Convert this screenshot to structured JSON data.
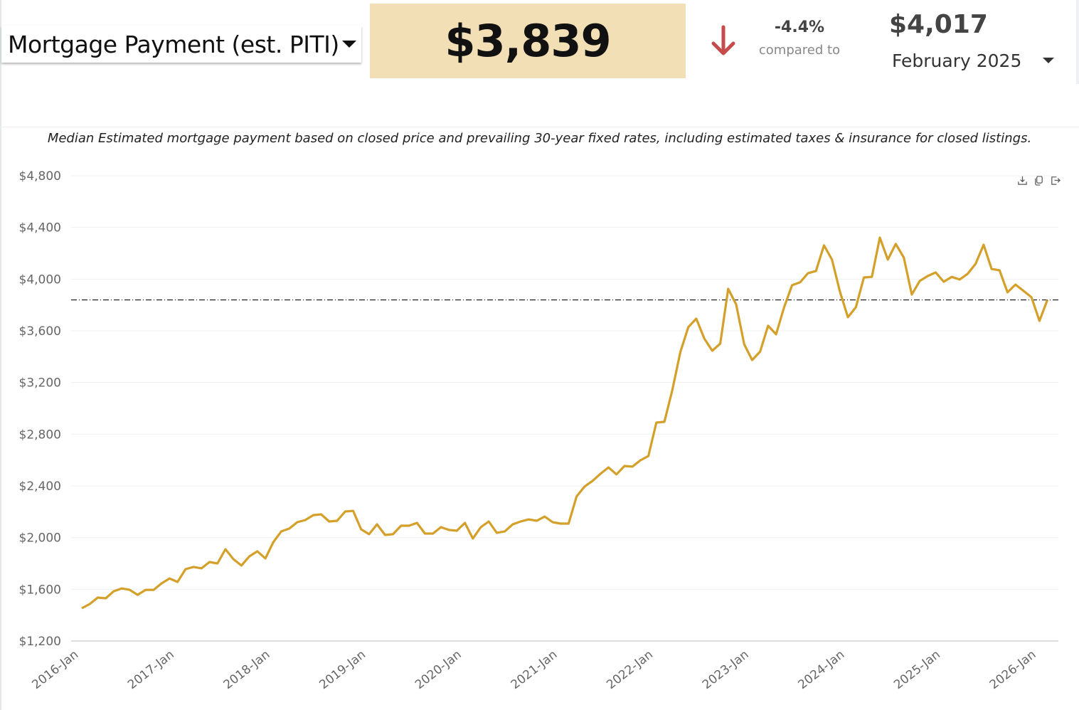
{
  "header": {
    "metric_selector": "Mortgage Payment (est. PITI)",
    "current_value": "$3,839",
    "change_percent": "-4.4%",
    "compared_to_label": "compared to",
    "compared_value": "$4,017",
    "compared_period": "February 2025"
  },
  "colors": {
    "line": "#d4a02a",
    "value_box": "#f2dfb5",
    "down_arrow": "#c64b4b"
  },
  "toolbar": [
    "download-icon",
    "copy-icon",
    "export-icon"
  ],
  "chart_data": {
    "type": "line",
    "title": "Median Estimated mortgage payment based on closed price and prevailing 30-year fixed rates, including estimated taxes & insurance for closed listings.",
    "xlabel": "",
    "ylabel": "",
    "x_start": "2016-01",
    "x_step": "month",
    "x_ticks": [
      "2016-Jan",
      "2017-Jan",
      "2018-Jan",
      "2019-Jan",
      "2020-Jan",
      "2021-Jan",
      "2022-Jan",
      "2023-Jan",
      "2024-Jan",
      "2025-Jan",
      "2026-Jan"
    ],
    "y_ticks": [
      "$1,200",
      "$1,600",
      "$2,000",
      "$2,400",
      "$2,800",
      "$3,200",
      "$3,600",
      "$4,000",
      "$4,400",
      "$4,800"
    ],
    "ylim": [
      1200,
      4800
    ],
    "grid": true,
    "reference_line": 3839,
    "series": [
      {
        "name": "Mortgage Payment (est. PITI)",
        "values": [
          1453,
          1486,
          1536,
          1530,
          1585,
          1607,
          1596,
          1557,
          1596,
          1596,
          1646,
          1684,
          1657,
          1756,
          1773,
          1762,
          1811,
          1800,
          1910,
          1833,
          1784,
          1855,
          1894,
          1839,
          1965,
          2048,
          2070,
          2119,
          2136,
          2174,
          2180,
          2125,
          2130,
          2202,
          2207,
          2064,
          2026,
          2103,
          2020,
          2026,
          2092,
          2092,
          2114,
          2031,
          2031,
          2081,
          2059,
          2053,
          2114,
          1993,
          2081,
          2125,
          2037,
          2048,
          2103,
          2125,
          2141,
          2130,
          2163,
          2119,
          2108,
          2108,
          2318,
          2395,
          2439,
          2494,
          2543,
          2489,
          2554,
          2549,
          2598,
          2631,
          2890,
          2896,
          3143,
          3435,
          3628,
          3694,
          3540,
          3446,
          3501,
          3925,
          3804,
          3496,
          3374,
          3440,
          3639,
          3573,
          3782,
          3953,
          3975,
          4046,
          4063,
          4261,
          4151,
          3903,
          3705,
          3782,
          4013,
          4017,
          4321,
          4151,
          4272,
          4167,
          3881,
          3986,
          4024,
          4052,
          3980,
          4017,
          3997,
          4041,
          4118,
          4266,
          4079,
          4068,
          3898,
          3958,
          3909,
          3859,
          3677,
          3839
        ]
      }
    ]
  }
}
